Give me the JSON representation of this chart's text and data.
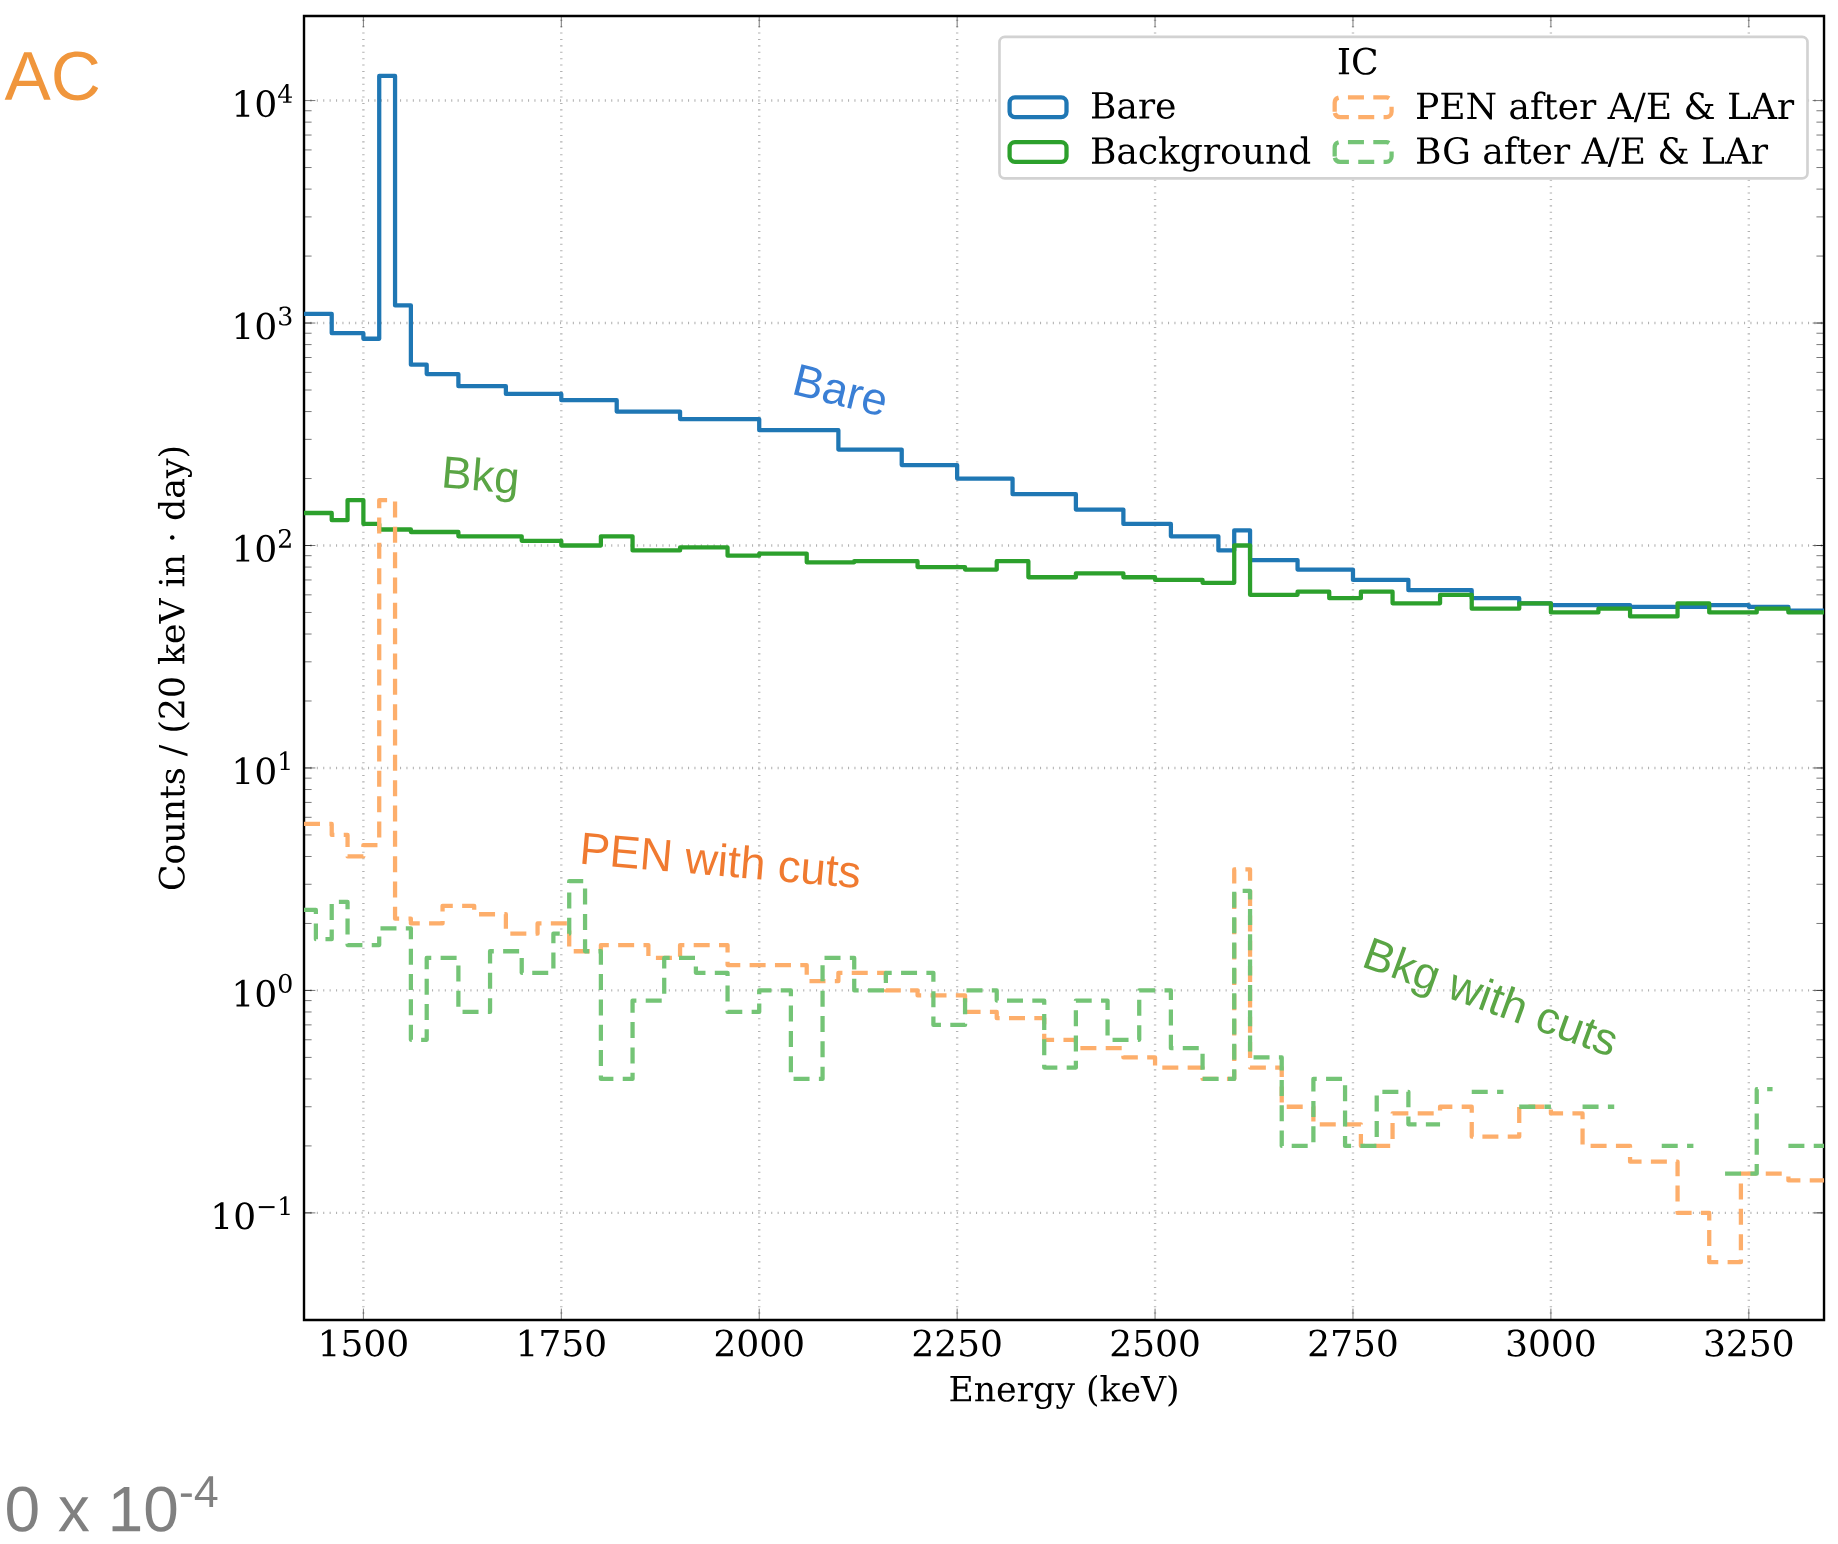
{
  "chart_data": {
    "type": "step",
    "xlabel": "Energy (keV)",
    "ylabel": "Counts / (20 keV in · day)",
    "legend_title": "IC",
    "log": "y",
    "grid": true,
    "legend": "top right",
    "xlim": [
      1425,
      3345
    ],
    "ylim": [
      0.033,
      24000
    ],
    "xticks": [
      1500,
      1750,
      2000,
      2250,
      2500,
      2750,
      3000,
      3250
    ],
    "yticks": [
      {
        "value": 0.1,
        "label": "10$^{−1}$"
      },
      {
        "value": 1,
        "label": "10$^{0}$"
      },
      {
        "value": 10,
        "label": "10$^{1}$"
      },
      {
        "value": 100,
        "label": "10$^{2}$"
      },
      {
        "value": 1000,
        "label": "10$^{3}$"
      },
      {
        "value": 10000,
        "label": "10$^{4}$"
      }
    ],
    "series": [
      {
        "name": "Bare",
        "color": "#1f77b4",
        "line_style": "solid",
        "x": [
          1425,
          1460,
          1500,
          1520,
          1540,
          1560,
          1580,
          1620,
          1680,
          1750,
          1820,
          1900,
          2000,
          2100,
          2180,
          2250,
          2320,
          2400,
          2460,
          2520,
          2580,
          2600,
          2620,
          2680,
          2750,
          2820,
          2900,
          2960,
          3000,
          3100,
          3200,
          3250,
          3300,
          3345
        ],
        "values": [
          1100,
          900,
          850,
          12900,
          1200,
          650,
          590,
          520,
          480,
          450,
          400,
          370,
          330,
          270,
          230,
          200,
          170,
          145,
          125,
          110,
          95,
          117,
          86,
          78,
          70,
          63,
          58,
          55,
          54,
          53,
          54,
          53,
          51,
          51
        ]
      },
      {
        "name": "Background",
        "color": "#2ca02c",
        "line_style": "solid",
        "x": [
          1425,
          1460,
          1480,
          1500,
          1520,
          1560,
          1620,
          1700,
          1750,
          1800,
          1840,
          1900,
          1960,
          2000,
          2060,
          2120,
          2200,
          2260,
          2300,
          2340,
          2400,
          2460,
          2500,
          2560,
          2600,
          2620,
          2680,
          2720,
          2760,
          2800,
          2860,
          2900,
          2960,
          3000,
          3060,
          3100,
          3160,
          3200,
          3260,
          3300,
          3345
        ],
        "values": [
          140,
          130,
          160,
          125,
          118,
          115,
          110,
          105,
          100,
          110,
          95,
          98,
          90,
          92,
          84,
          85,
          80,
          78,
          85,
          72,
          75,
          72,
          70,
          68,
          100,
          60,
          62,
          58,
          62,
          55,
          60,
          52,
          55,
          50,
          52,
          48,
          55,
          50,
          52,
          50,
          50
        ]
      },
      {
        "name": "PEN after A/E & LAr",
        "color": "#fdae6b",
        "line_style": "dashed",
        "x": [
          1425,
          1460,
          1480,
          1500,
          1520,
          1540,
          1560,
          1600,
          1640,
          1680,
          1720,
          1760,
          1800,
          1860,
          1900,
          1960,
          2000,
          2060,
          2100,
          2160,
          2200,
          2260,
          2300,
          2360,
          2400,
          2460,
          2500,
          2560,
          2600,
          2620,
          2660,
          2700,
          2760,
          2800,
          2860,
          2900,
          2960,
          3000,
          3040,
          3100,
          3160,
          3200,
          3240,
          3300,
          3345
        ],
        "values": [
          5.6,
          5.0,
          4.0,
          4.5,
          160,
          2.1,
          2.0,
          2.4,
          2.2,
          1.8,
          2.0,
          1.5,
          1.6,
          1.4,
          1.6,
          1.3,
          1.3,
          1.1,
          1.2,
          1.0,
          0.95,
          0.8,
          0.75,
          0.6,
          0.55,
          0.5,
          0.45,
          0.4,
          3.5,
          0.45,
          0.3,
          0.25,
          0.2,
          0.28,
          0.3,
          0.22,
          0.3,
          0.28,
          0.2,
          0.17,
          0.1,
          0.06,
          0.15,
          0.14,
          0.14
        ]
      },
      {
        "name": "BG after A/E & LAr",
        "color": "#74c476",
        "line_style": "dashed",
        "x": [
          1425,
          1440,
          1460,
          1480,
          1520,
          1560,
          1580,
          1620,
          1660,
          1700,
          1740,
          1760,
          1780,
          1800,
          1840,
          1880,
          1920,
          1960,
          2000,
          2040,
          2080,
          2120,
          2160,
          2220,
          2260,
          2300,
          2360,
          2400,
          2440,
          2480,
          2520,
          2560,
          2600,
          2620,
          2660,
          2700,
          2740,
          2780,
          2820,
          2860,
          2900,
          2940,
          2960,
          3000,
          3040,
          3080,
          3140,
          3180,
          3220,
          3260,
          3280,
          3300,
          3345
        ],
        "values": [
          2.3,
          1.7,
          2.5,
          1.6,
          1.9,
          0.6,
          1.4,
          0.8,
          1.5,
          1.2,
          1.8,
          3.1,
          1.5,
          0.4,
          0.9,
          1.4,
          1.2,
          0.8,
          1.0,
          0.4,
          1.4,
          1.0,
          1.2,
          0.7,
          1.0,
          0.9,
          0.45,
          0.9,
          0.6,
          1.0,
          0.55,
          0.4,
          2.8,
          0.5,
          0.2,
          0.4,
          0.2,
          0.35,
          0.25,
          null,
          0.35,
          null,
          0.3,
          null,
          0.3,
          null,
          0.2,
          null,
          0.15,
          0.36,
          null,
          0.2,
          0.2
        ]
      }
    ],
    "annotations": [
      "Bare",
      "Bkg",
      "PEN with cuts",
      "Bkg with cuts",
      "AC",
      "0 x 10$^{-4}$"
    ]
  }
}
